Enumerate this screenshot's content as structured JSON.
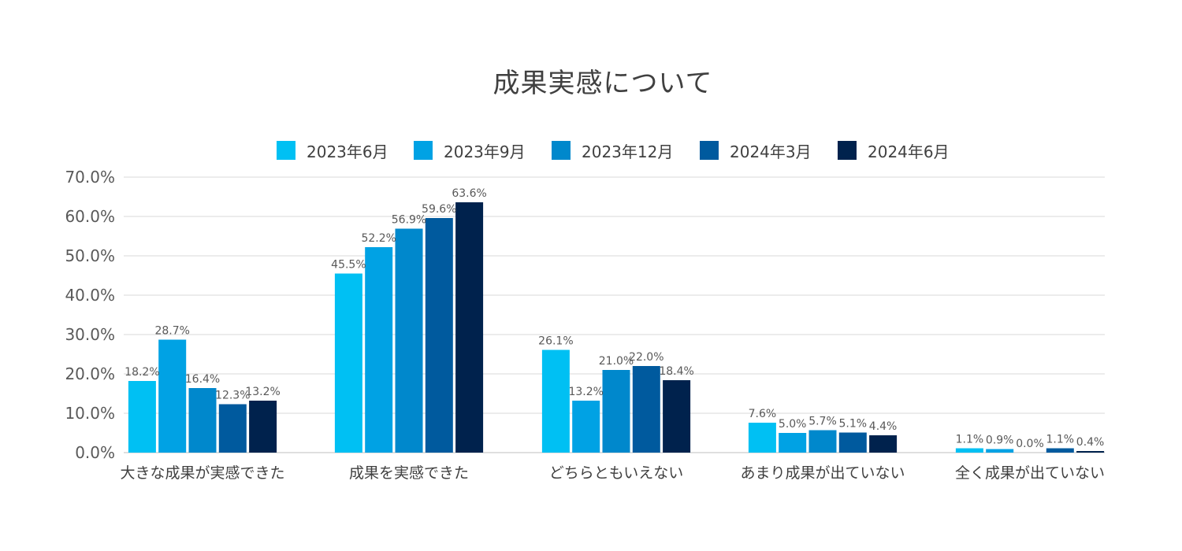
{
  "chart_data": {
    "type": "bar",
    "title": "成果実感について",
    "xlabel": "",
    "ylabel": "",
    "ylim": [
      0,
      70
    ],
    "ytick_step": 10,
    "ytick_labels": [
      "0.0%",
      "10.0%",
      "20.0%",
      "30.0%",
      "40.0%",
      "50.0%",
      "60.0%",
      "70.0%"
    ],
    "grid": true,
    "legend_position": "top",
    "categories": [
      "大きな成果が実感できた",
      "成果を実感できた",
      "どちらともいえない",
      "あまり成果が出ていない",
      "全く成果が出ていない"
    ],
    "series": [
      {
        "name": "2023年6月",
        "color": "#00C0F3",
        "values": [
          18.2,
          45.5,
          26.1,
          7.6,
          1.1
        ],
        "labels": [
          "18.2%",
          "45.5%",
          "26.1%",
          "7.6%",
          "1.1%"
        ]
      },
      {
        "name": "2023年9月",
        "color": "#00A2E4",
        "values": [
          28.7,
          52.2,
          13.2,
          5.0,
          0.9
        ],
        "labels": [
          "28.7%",
          "52.2%",
          "13.2%",
          "5.0%",
          "0.9%"
        ]
      },
      {
        "name": "2023年12月",
        "color": "#0088CC",
        "values": [
          16.4,
          56.9,
          21.0,
          5.7,
          0.0
        ],
        "labels": [
          "16.4%",
          "56.9%",
          "21.0%",
          "5.7%",
          "0.0%"
        ]
      },
      {
        "name": "2024年3月",
        "color": "#005A9E",
        "values": [
          12.3,
          59.6,
          22.0,
          5.1,
          1.1
        ],
        "labels": [
          "12.3%",
          "59.6%",
          "22.0%",
          "5.1%",
          "1.1%"
        ]
      },
      {
        "name": "2024年6月",
        "color": "#00224D",
        "values": [
          13.2,
          63.6,
          18.4,
          4.4,
          0.4
        ],
        "labels": [
          "13.2%",
          "63.6%",
          "18.4%",
          "4.4%",
          "0.4%"
        ]
      }
    ]
  }
}
